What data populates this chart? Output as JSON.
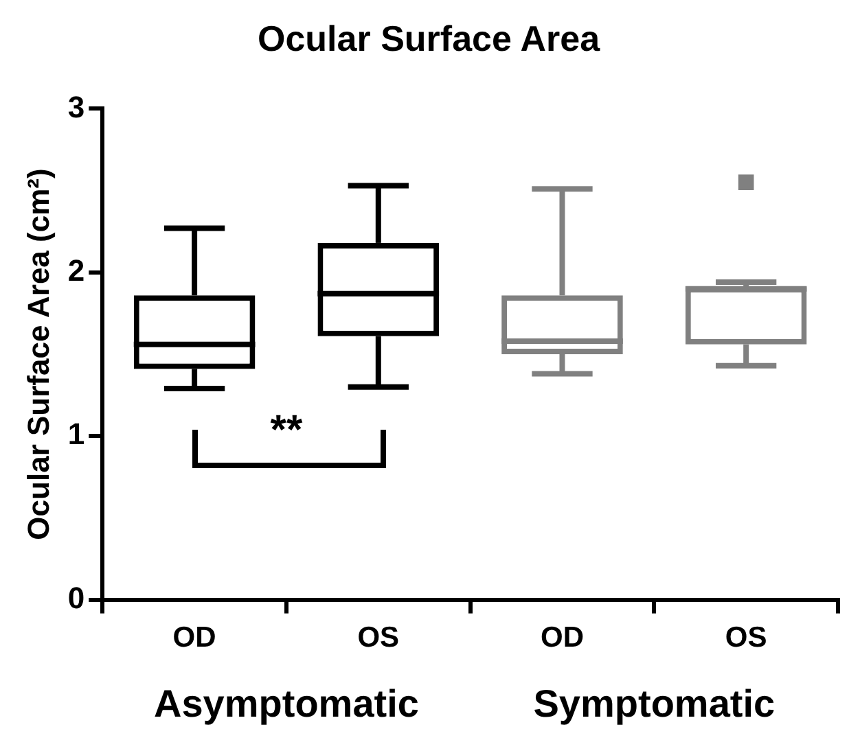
{
  "chart_data": {
    "type": "box",
    "title": "Ocular Surface Area",
    "ylabel": "Ocular Surface Area (cm²)",
    "categories": [
      "OD",
      "OS",
      "OD",
      "OS"
    ],
    "boxes": [
      {
        "low": 1.29,
        "q1": 1.41,
        "median": 1.56,
        "q3": 1.86,
        "high": 2.27
      },
      {
        "low": 1.3,
        "q1": 1.61,
        "median": 1.87,
        "q3": 2.18,
        "high": 2.53
      },
      {
        "low": 1.38,
        "q1": 1.5,
        "median": 1.58,
        "q3": 1.86,
        "high": 2.51
      },
      {
        "low": 1.43,
        "q1": 1.56,
        "median": 1.9,
        "q3": 1.91,
        "high": 1.94,
        "outliers": [
          2.55
        ]
      }
    ],
    "colors": [
      "#000000",
      "#000000",
      "#808080",
      "#808080"
    ],
    "ylim": [
      0,
      3
    ],
    "yticks": [
      0,
      1,
      2,
      3
    ],
    "grid": false,
    "legend": false,
    "marker": "square",
    "annotations": [
      "**",
      "Asymptomatic",
      "Symptomatic"
    ]
  }
}
